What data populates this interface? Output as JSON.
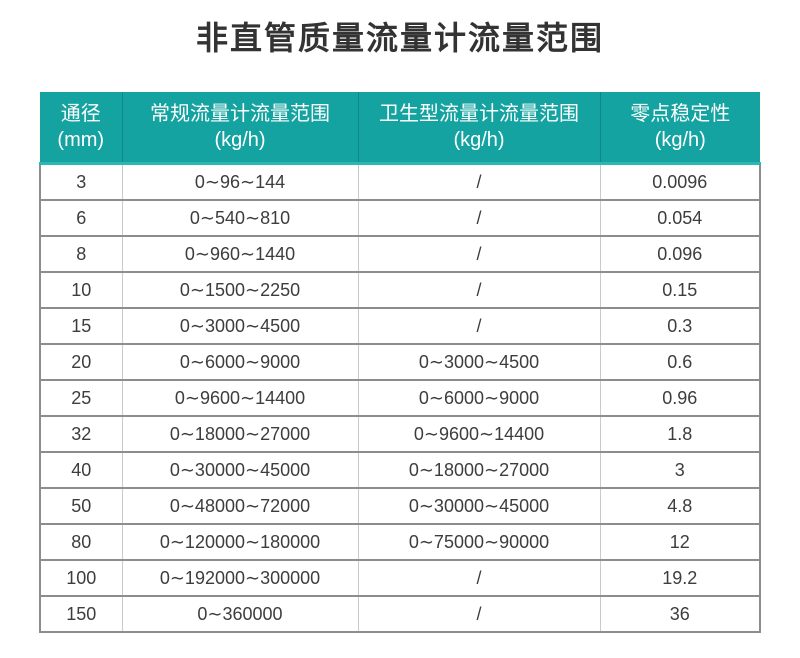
{
  "page_title": "非直管质量流量计流量范围",
  "colors": {
    "header_bg": "#14a3a1",
    "header_bottom_edge": "#2cb6b4",
    "header_text": "#ffffff",
    "title_text": "#333333",
    "cell_text": "#3d3d3d",
    "row_border": "#8d8d8d",
    "column_border": "#c9c9c9",
    "background": "#ffffff"
  },
  "chart_data": {
    "type": "table",
    "title": "非直管质量流量计流量范围",
    "columns": [
      {
        "label": "通径",
        "unit": "(mm)"
      },
      {
        "label": "常规流量计流量范围",
        "unit": "(kg/h)"
      },
      {
        "label": "卫生型流量计流量范围",
        "unit": "(kg/h)"
      },
      {
        "label": "零点稳定性",
        "unit": "(kg/h)"
      }
    ],
    "empty_cell_marker": "/",
    "rows": [
      [
        "3",
        "0∼96∼144",
        "/",
        "0.0096"
      ],
      [
        "6",
        "0∼540∼810",
        "/",
        "0.054"
      ],
      [
        "8",
        "0∼960∼1440",
        "/",
        "0.096"
      ],
      [
        "10",
        "0∼1500∼2250",
        "/",
        "0.15"
      ],
      [
        "15",
        "0∼3000∼4500",
        "/",
        "0.3"
      ],
      [
        "20",
        "0∼6000∼9000",
        "0∼3000∼4500",
        "0.6"
      ],
      [
        "25",
        "0∼9600∼14400",
        "0∼6000∼9000",
        "0.96"
      ],
      [
        "32",
        "0∼18000∼27000",
        "0∼9600∼14400",
        "1.8"
      ],
      [
        "40",
        "0∼30000∼45000",
        "0∼18000∼27000",
        "3"
      ],
      [
        "50",
        "0∼48000∼72000",
        "0∼30000∼45000",
        "4.8"
      ],
      [
        "80",
        "0∼120000∼180000",
        "0∼75000∼90000",
        "12"
      ],
      [
        "100",
        "0∼192000∼300000",
        "/",
        "19.2"
      ],
      [
        "150",
        "0∼360000",
        "/",
        "36"
      ]
    ]
  }
}
